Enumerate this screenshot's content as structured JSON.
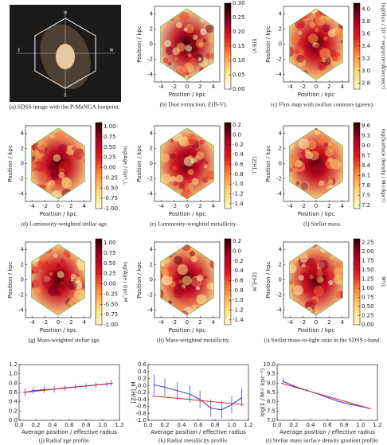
{
  "chart_data": [
    {
      "type": "image",
      "caption": "(a) SDSS image with the P-MaNGA footprint.",
      "labels": [
        "N",
        "E",
        "S",
        "W"
      ]
    },
    {
      "type": "map",
      "caption": "(b) Dust extinction, E(B-V).",
      "xlabel": "Position / kpc",
      "ylabel": "Position / kpc",
      "xlim": [
        -5,
        5
      ],
      "ylim": [
        -5,
        5
      ],
      "xticks": [
        -4,
        -2,
        0,
        2,
        4
      ],
      "yticks": [
        -4,
        -2,
        0,
        2,
        4
      ],
      "colorbar_label": "E(B-V)",
      "clim": [
        0,
        0.3
      ],
      "cticks": [
        {
          "value": 0,
          "label": "0.00"
        },
        0.05,
        {
          "value": 0.1,
          "label": "0.10"
        },
        0.15,
        {
          "value": 0.2,
          "label": "0.20"
        },
        0.25,
        {
          "value": 0.3,
          "label": "0.30"
        }
      ],
      "colors": [
        "#ffffff",
        "#ffe58a",
        "#fd8d3c",
        "#e31a1c",
        "#800026",
        "#1a0000"
      ]
    },
    {
      "type": "map",
      "caption": "(c) Flux map with isoflux contours (green).",
      "xlabel": "Position / kpc",
      "ylabel": "Position / kpc",
      "xlim": [
        -5,
        5
      ],
      "ylim": [
        -5,
        5
      ],
      "xticks": [
        -4,
        -2,
        0,
        2,
        4
      ],
      "yticks": [
        -4,
        -2,
        0,
        2,
        4
      ],
      "colorbar_label": "log(Flux / 10⁻¹⁷ erg/s/cm²/Å/arcsec²)",
      "clim": [
        2.7,
        4.1
      ],
      "cticks": [
        2.8,
        {
          "value": 3,
          "label": "3.0"
        },
        3.2,
        3.4,
        3.6,
        3.8,
        {
          "value": 4,
          "label": "4.0"
        }
      ],
      "colors": [
        "#ffffcc",
        "#fed976",
        "#fd8d3c",
        "#e31a1c",
        "#a50026",
        "#300000"
      ]
    },
    {
      "type": "map",
      "caption": "(d) Luminosity-weighted stellar age.",
      "xlabel": "Position / kpc",
      "ylabel": "Position / kpc",
      "xlim": [
        -5,
        5
      ],
      "ylim": [
        -5,
        5
      ],
      "xticks": [
        -4,
        -2,
        0,
        2,
        4
      ],
      "yticks": [
        -4,
        -2,
        0,
        2,
        4
      ],
      "colorbar_label": "log(Age / Gyr)_L",
      "clim": [
        -1,
        1.1
      ],
      "cticks": [
        {
          "value": -1,
          "label": "-1.00"
        },
        -0.75,
        {
          "value": -0.5,
          "label": "-0.50"
        },
        -0.25,
        {
          "value": 0,
          "label": "0.00"
        },
        0.25,
        {
          "value": 0.5,
          "label": "0.50"
        },
        0.75,
        {
          "value": 1,
          "label": "1.00"
        }
      ],
      "colors": [
        "#ffffcc",
        "#fed976",
        "#fd8d3c",
        "#e31a1c",
        "#a50026",
        "#300000"
      ]
    },
    {
      "type": "map",
      "caption": "(e) Luminosity-weighted metallicity.",
      "xlabel": "Position / kpc",
      "ylabel": "Position / kpc",
      "xlim": [
        -5,
        5
      ],
      "ylim": [
        -5,
        5
      ],
      "xticks": [
        -4,
        -2,
        0,
        2,
        4
      ],
      "yticks": [
        -4,
        -2,
        0,
        2,
        4
      ],
      "colorbar_label": "[Z/H]_L",
      "clim": [
        -1.5,
        0.25
      ],
      "cticks": [
        -1.4,
        -1.2,
        {
          "value": -1,
          "label": "-1.0"
        },
        -0.8,
        -0.6,
        -0.4,
        -0.2,
        {
          "value": 0,
          "label": "0.0"
        },
        0.2
      ],
      "colors": [
        "#ffffcc",
        "#fed976",
        "#fd8d3c",
        "#e31a1c",
        "#a50026",
        "#300000"
      ]
    },
    {
      "type": "map",
      "caption": "(f) Stellar mass.",
      "xlabel": "Position / kpc",
      "ylabel": "Position / kpc",
      "xlim": [
        -5,
        5
      ],
      "ylim": [
        -5,
        5
      ],
      "xticks": [
        -4,
        -2,
        0,
        2,
        4
      ],
      "yticks": [
        -4,
        -2,
        0,
        2,
        4
      ],
      "colorbar_label": "log(Surface density / M☉/kpc²)",
      "clim": [
        7.1,
        9.7
      ],
      "cticks": [
        7.2,
        7.5,
        7.8,
        8.1,
        8.4,
        8.7,
        {
          "value": 9,
          "label": "9.0"
        },
        9.3,
        9.6
      ],
      "colors": [
        "#ffffcc",
        "#fed976",
        "#fd8d3c",
        "#e31a1c",
        "#a50026",
        "#300000"
      ]
    },
    {
      "type": "map",
      "caption": "(g) Mass-weighted stellar age.",
      "xlabel": "Position / kpc",
      "ylabel": "Position / kpc",
      "xlim": [
        -5,
        5
      ],
      "ylim": [
        -5,
        5
      ],
      "xticks": [
        -4,
        -2,
        0,
        2,
        4
      ],
      "yticks": [
        -4,
        -2,
        0,
        2,
        4
      ],
      "colorbar_label": "log(Age / Gyr)_M",
      "clim": [
        -1,
        1.1
      ],
      "cticks": [
        {
          "value": -1,
          "label": "-1.00"
        },
        -0.75,
        {
          "value": -0.5,
          "label": "-0.50"
        },
        -0.25,
        {
          "value": 0,
          "label": "0.00"
        },
        0.25,
        {
          "value": 0.5,
          "label": "0.50"
        },
        0.75,
        {
          "value": 1,
          "label": "1.00"
        }
      ],
      "colors": [
        "#ffffcc",
        "#fed976",
        "#fd8d3c",
        "#e31a1c",
        "#a50026",
        "#300000"
      ]
    },
    {
      "type": "map",
      "caption": "(h) Mass-weighted metallicity.",
      "xlabel": "Position / kpc",
      "ylabel": "Position / kpc",
      "xlim": [
        -5,
        5
      ],
      "ylim": [
        -5,
        5
      ],
      "xticks": [
        -4,
        -2,
        0,
        2,
        4
      ],
      "yticks": [
        -4,
        -2,
        0,
        2,
        4
      ],
      "colorbar_label": "[Z/H]_M",
      "clim": [
        -1.5,
        0.25
      ],
      "cticks": [
        -1.4,
        -1.2,
        {
          "value": -1,
          "label": "-1.0"
        },
        -0.8,
        -0.6,
        -0.4,
        -0.2,
        {
          "value": 0,
          "label": "0.0"
        },
        0.2
      ],
      "colors": [
        "#ffffcc",
        "#fed976",
        "#fd8d3c",
        "#e31a1c",
        "#a50026",
        "#300000"
      ]
    },
    {
      "type": "map",
      "caption": "(i) Stellar mass-to-light ratio in the SDSS i-band.",
      "xlabel": "Position / kpc",
      "ylabel": "Position / kpc",
      "xlim": [
        -5,
        5
      ],
      "ylim": [
        -5,
        5
      ],
      "xticks": [
        -4,
        -2,
        0,
        2,
        4
      ],
      "yticks": [
        -4,
        -2,
        0,
        2,
        4
      ],
      "colorbar_label": "M*/L",
      "clim": [
        0,
        2.35
      ],
      "cticks": [
        {
          "value": 0,
          "label": "0.00"
        },
        0.25,
        {
          "value": 0.5,
          "label": "0.50"
        },
        0.75,
        {
          "value": 1,
          "label": "1.00"
        },
        1.25,
        {
          "value": 1.5,
          "label": "1.50"
        },
        1.75,
        {
          "value": 2,
          "label": "2.00"
        },
        2.25
      ],
      "colors": [
        "#ffffcc",
        "#fed976",
        "#fd8d3c",
        "#e31a1c",
        "#a50026",
        "#300000"
      ]
    },
    {
      "type": "line",
      "caption": "(j) Radial age profile.",
      "xlabel": "Average position / effective radius",
      "xlim": [
        0,
        1.2
      ],
      "ylim": [
        0,
        1.2
      ],
      "xticks": [
        {
          "value": 0,
          "label": "0.0"
        },
        0.2,
        0.4,
        0.6,
        0.8,
        {
          "value": 1,
          "label": "1.0"
        },
        1.2
      ],
      "yticks": [
        {
          "value": 0,
          "label": "0.0"
        },
        0.2,
        0.4,
        0.6,
        0.8,
        {
          "value": 1,
          "label": "1.0"
        },
        1.2
      ],
      "series": [
        {
          "color": "#3333cc",
          "x": [
            0.07,
            0.17,
            0.3,
            0.42,
            0.55,
            0.67,
            0.8,
            0.92,
            1.05,
            1.1
          ],
          "values": [
            0.6,
            0.64,
            0.66,
            0.67,
            0.7,
            0.72,
            0.74,
            0.76,
            0.78,
            0.8
          ],
          "errors": [
            0.08,
            0.07,
            0.07,
            0.07,
            0.06,
            0.06,
            0.06,
            0.06,
            0.06,
            0.06
          ]
        },
        {
          "color": "#dd2222",
          "x": [
            0.05,
            1.12
          ],
          "values": [
            0.6,
            0.8
          ]
        }
      ]
    },
    {
      "type": "line",
      "caption": "(k) Radial metallicity profile.",
      "xlabel": "Average position / effective radius",
      "ylabel": "[Z/H]_M",
      "xlim": [
        0,
        1.2
      ],
      "ylim": [
        -1,
        0.6
      ],
      "xticks": [
        {
          "value": 0,
          "label": "0.0"
        },
        0.2,
        0.4,
        0.6,
        0.8,
        {
          "value": 1,
          "label": "1.0"
        },
        1.2
      ],
      "yticks": [
        {
          "value": -1,
          "label": "-1.0"
        },
        -0.8,
        -0.6,
        -0.4,
        -0.2,
        {
          "value": 0,
          "label": "0.0"
        },
        0.2,
        0.4,
        0.6
      ],
      "series": [
        {
          "color": "#3333cc",
          "x": [
            0.07,
            0.2,
            0.35,
            0.5,
            0.62,
            0.75,
            0.88,
            1.0,
            1.12
          ],
          "values": [
            0.02,
            -0.05,
            -0.15,
            -0.25,
            -0.4,
            -0.65,
            -0.7,
            -0.55,
            -0.35
          ],
          "errors": [
            0.3,
            0.25,
            0.25,
            0.25,
            0.25,
            0.25,
            0.25,
            0.25,
            0.25
          ]
        },
        {
          "color": "#dd2222",
          "x": [
            0.05,
            1.15
          ],
          "values": [
            -0.3,
            -0.55
          ]
        }
      ]
    },
    {
      "type": "line",
      "caption": "(l) Stellar mass surface density gradient profile.",
      "xlabel": "Average position / effective radius",
      "ylabel": "log(Σ / M☉ kpc⁻²)",
      "xlim": [
        0,
        1.2
      ],
      "ylim": [
        7,
        10
      ],
      "xticks": [
        {
          "value": 0,
          "label": "0.0"
        },
        0.2,
        0.4,
        0.6,
        0.8,
        {
          "value": 1,
          "label": "1.0"
        },
        1.2
      ],
      "yticks": [
        {
          "value": 7,
          "label": "7.0"
        },
        7.5,
        {
          "value": 8,
          "label": "8.0"
        },
        8.5,
        {
          "value": 9,
          "label": "9.0"
        },
        9.5,
        {
          "value": 10,
          "label": "10.0"
        }
      ],
      "series": [
        {
          "color": "#3333cc",
          "x": [
            0.07,
            0.2,
            0.35,
            0.5,
            0.62,
            0.75,
            0.88,
            1.0,
            1.1
          ],
          "values": [
            9.1,
            8.85,
            8.62,
            8.4,
            8.2,
            8.0,
            7.85,
            7.75,
            7.65
          ],
          "errors": [
            0.15,
            0.06,
            0.05,
            0.04,
            0.03,
            0.03,
            0.03,
            0.03,
            0.03
          ]
        },
        {
          "color": "#dd2222",
          "x": [
            0.05,
            1.12
          ],
          "values": [
            9.0,
            7.62
          ]
        }
      ]
    }
  ]
}
